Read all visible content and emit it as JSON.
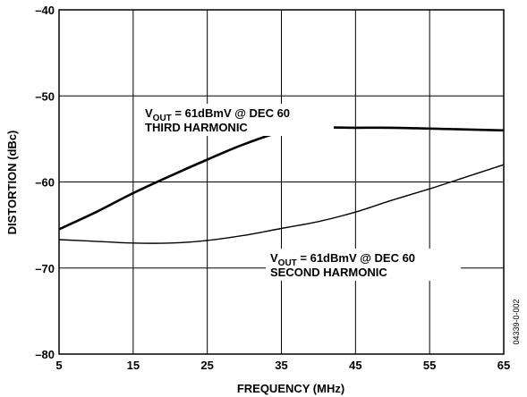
{
  "chart_data": {
    "type": "line",
    "title": "",
    "xlabel": "FREQUENCY (MHz)",
    "ylabel": "DISTORTION (dBc)",
    "xlim": [
      5,
      65
    ],
    "ylim": [
      -80,
      -40
    ],
    "xticks": [
      5,
      15,
      25,
      35,
      45,
      55,
      65
    ],
    "yticks": [
      -80,
      -70,
      -60,
      -50,
      -40
    ],
    "xtick_labels": [
      "5",
      "15",
      "25",
      "35",
      "45",
      "55",
      "65"
    ],
    "ytick_labels": [
      "–80",
      "–70",
      "–60",
      "–50",
      "–40"
    ],
    "grid": true,
    "series": [
      {
        "label_lines": [
          {
            "prefix": "V",
            "subscript": "OUT",
            "suffix": " = 61dBmV @ DEC 60"
          },
          {
            "text": "THIRD HARMONIC"
          }
        ],
        "x": [
          5,
          10,
          15,
          20,
          25,
          30,
          35,
          40,
          45,
          50,
          55,
          60,
          65
        ],
        "y": [
          -65.5,
          -63.5,
          -61.3,
          -59.3,
          -57.4,
          -55.6,
          -54.2,
          -53.7,
          -53.7,
          -53.7,
          -53.8,
          -53.9,
          -54.0
        ]
      },
      {
        "label_lines": [
          {
            "prefix": "V",
            "subscript": "OUT",
            "suffix": " = 61dBmV @ DEC 60"
          },
          {
            "text": "SECOND HARMONIC"
          }
        ],
        "x": [
          5,
          10,
          15,
          20,
          25,
          30,
          35,
          40,
          45,
          50,
          55,
          60,
          65
        ],
        "y": [
          -66.7,
          -66.9,
          -67.1,
          -67.1,
          -66.8,
          -66.2,
          -65.4,
          -64.6,
          -63.5,
          -62.1,
          -60.8,
          -59.4,
          -58.0
        ]
      }
    ],
    "figure_code": "04339-0-002"
  }
}
